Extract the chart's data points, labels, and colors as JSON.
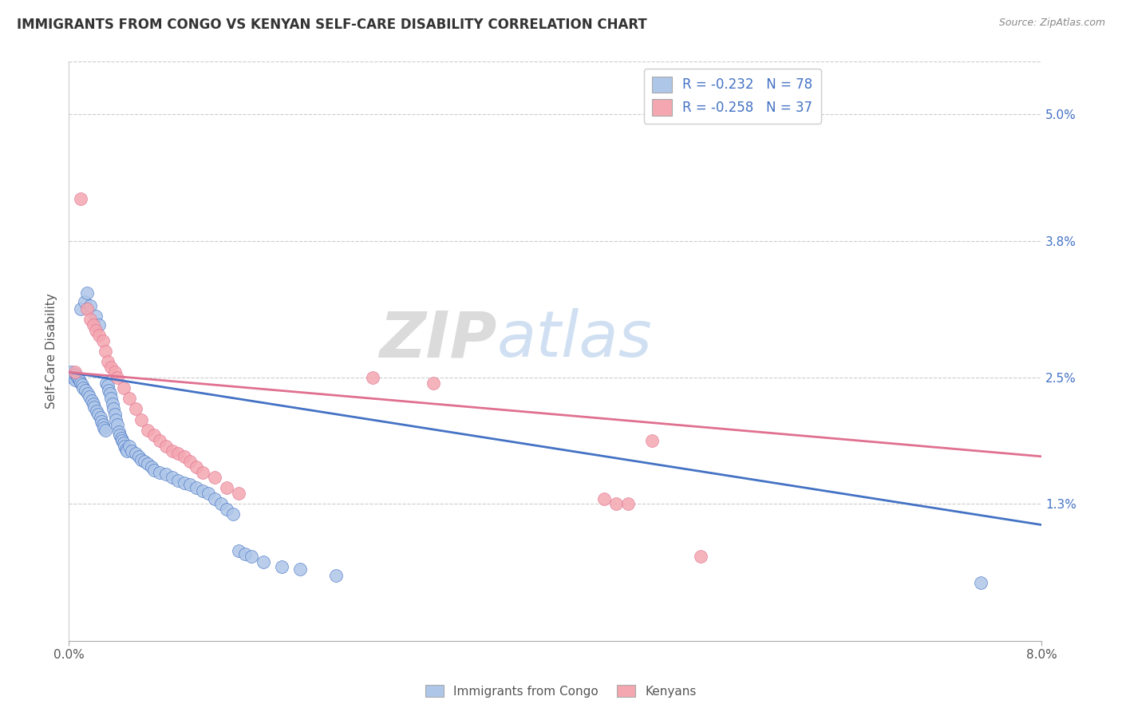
{
  "title": "IMMIGRANTS FROM CONGO VS KENYAN SELF-CARE DISABILITY CORRELATION CHART",
  "source": "Source: ZipAtlas.com",
  "ylabel": "Self-Care Disability",
  "right_yticks": [
    "5.0%",
    "3.8%",
    "2.5%",
    "1.3%"
  ],
  "right_ytick_vals": [
    5.0,
    3.8,
    2.5,
    1.3
  ],
  "xlim": [
    0.0,
    8.0
  ],
  "ylim": [
    0.0,
    5.5
  ],
  "label1": "Immigrants from Congo",
  "label2": "Kenyans",
  "color1": "#aec6e8",
  "color2": "#f4a7b0",
  "line_color1": "#4472c4",
  "line_color2": "#e07090",
  "watermark_zip": "ZIP",
  "watermark_atlas": "atlas",
  "congo_x": [
    0.02,
    0.03,
    0.04,
    0.05,
    0.06,
    0.07,
    0.08,
    0.09,
    0.1,
    0.1,
    0.11,
    0.12,
    0.13,
    0.14,
    0.15,
    0.16,
    0.17,
    0.18,
    0.19,
    0.2,
    0.21,
    0.22,
    0.23,
    0.24,
    0.25,
    0.26,
    0.27,
    0.28,
    0.29,
    0.3,
    0.31,
    0.32,
    0.33,
    0.34,
    0.35,
    0.36,
    0.37,
    0.38,
    0.39,
    0.4,
    0.41,
    0.42,
    0.43,
    0.44,
    0.45,
    0.46,
    0.47,
    0.48,
    0.5,
    0.52,
    0.55,
    0.58,
    0.6,
    0.62,
    0.65,
    0.68,
    0.7,
    0.75,
    0.8,
    0.85,
    0.9,
    0.95,
    1.0,
    1.05,
    1.1,
    1.15,
    1.2,
    1.25,
    1.3,
    1.35,
    1.4,
    1.45,
    1.5,
    1.6,
    1.75,
    1.9,
    2.2,
    7.5
  ],
  "congo_y": [
    2.55,
    2.5,
    2.52,
    2.48,
    2.53,
    2.51,
    2.49,
    2.47,
    2.45,
    3.15,
    2.43,
    2.4,
    3.22,
    2.38,
    3.3,
    2.35,
    2.32,
    3.18,
    2.28,
    2.25,
    2.22,
    3.08,
    2.18,
    2.15,
    3.0,
    2.12,
    2.08,
    2.05,
    2.02,
    2.0,
    2.45,
    2.42,
    2.38,
    2.35,
    2.3,
    2.25,
    2.2,
    2.15,
    2.1,
    2.05,
    1.98,
    1.95,
    1.92,
    1.9,
    1.88,
    1.85,
    1.82,
    1.8,
    1.85,
    1.8,
    1.78,
    1.75,
    1.72,
    1.7,
    1.68,
    1.65,
    1.62,
    1.6,
    1.58,
    1.55,
    1.52,
    1.5,
    1.48,
    1.45,
    1.42,
    1.4,
    1.35,
    1.3,
    1.25,
    1.2,
    0.85,
    0.82,
    0.8,
    0.75,
    0.7,
    0.68,
    0.62,
    0.55
  ],
  "kenya_x": [
    0.05,
    0.1,
    0.15,
    0.18,
    0.2,
    0.22,
    0.25,
    0.28,
    0.3,
    0.32,
    0.35,
    0.38,
    0.4,
    0.45,
    0.5,
    0.55,
    0.6,
    0.65,
    0.7,
    0.75,
    0.8,
    0.85,
    0.9,
    0.95,
    1.0,
    1.05,
    1.1,
    1.2,
    1.3,
    1.4,
    2.5,
    3.0,
    4.4,
    4.5,
    4.6,
    4.8,
    5.2
  ],
  "kenya_y": [
    2.55,
    4.2,
    3.15,
    3.05,
    3.0,
    2.95,
    2.9,
    2.85,
    2.75,
    2.65,
    2.6,
    2.55,
    2.5,
    2.4,
    2.3,
    2.2,
    2.1,
    2.0,
    1.95,
    1.9,
    1.85,
    1.8,
    1.78,
    1.75,
    1.7,
    1.65,
    1.6,
    1.55,
    1.45,
    1.4,
    2.5,
    2.45,
    1.35,
    1.3,
    1.3,
    1.9,
    0.8
  ]
}
